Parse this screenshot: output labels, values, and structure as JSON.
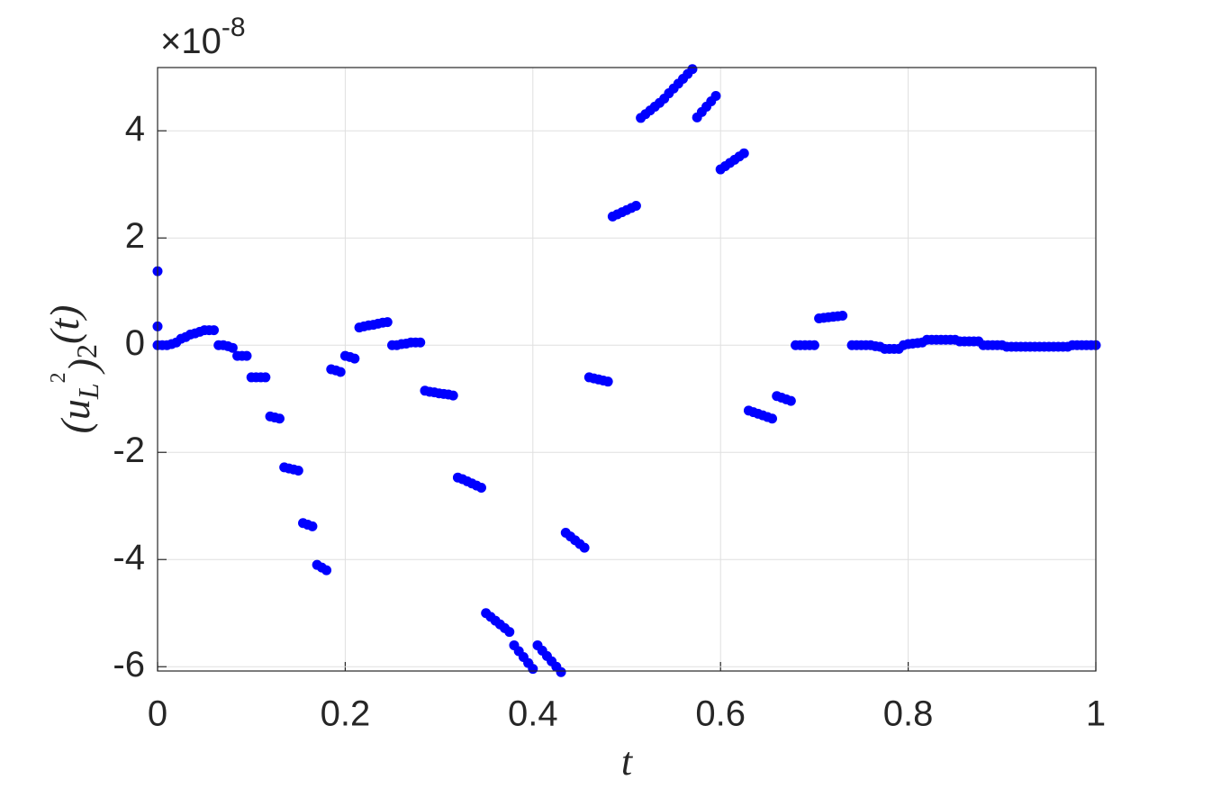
{
  "chart_data": {
    "type": "scatter",
    "xlabel": "t",
    "ylabel_parts": [
      "(u",
      "L",
      "2",
      ")",
      "2",
      "(t)"
    ],
    "y_multiplier": {
      "base": "×10",
      "exponent": "-8"
    },
    "color": "#0000ff",
    "grid": true,
    "xlim": [
      0,
      1
    ],
    "xticks": [
      0,
      0.2,
      0.4,
      0.6,
      0.8,
      1
    ],
    "ylim": [
      -6.08,
      5.18
    ],
    "yticks": [
      -6,
      -4,
      -2,
      0,
      2,
      4
    ],
    "x": [
      0,
      0,
      0,
      0.005,
      0.01,
      0.015,
      0.02,
      0.025,
      0.03,
      0.035,
      0.04,
      0.045,
      0.05,
      0.055,
      0.06,
      0.065,
      0.07,
      0.075,
      0.08,
      0.085,
      0.09,
      0.095,
      0.1,
      0.105,
      0.11,
      0.115,
      0.12,
      0.125,
      0.13,
      0.135,
      0.14,
      0.145,
      0.15,
      0.155,
      0.16,
      0.165,
      0.17,
      0.175,
      0.18,
      0.185,
      0.19,
      0.195,
      0.2,
      0.205,
      0.21,
      0.215,
      0.22,
      0.225,
      0.23,
      0.235,
      0.24,
      0.245,
      0.25,
      0.255,
      0.26,
      0.265,
      0.27,
      0.275,
      0.28,
      0.285,
      0.29,
      0.295,
      0.3,
      0.305,
      0.31,
      0.315,
      0.32,
      0.325,
      0.33,
      0.335,
      0.34,
      0.345,
      0.35,
      0.355,
      0.36,
      0.365,
      0.37,
      0.375,
      0.38,
      0.385,
      0.39,
      0.395,
      0.4,
      0.405,
      0.41,
      0.415,
      0.42,
      0.425,
      0.43,
      0.435,
      0.44,
      0.445,
      0.45,
      0.455,
      0.46,
      0.465,
      0.47,
      0.475,
      0.48,
      0.485,
      0.49,
      0.495,
      0.5,
      0.505,
      0.51,
      0.515,
      0.52,
      0.525,
      0.53,
      0.535,
      0.54,
      0.545,
      0.55,
      0.555,
      0.56,
      0.565,
      0.57,
      0.575,
      0.58,
      0.585,
      0.59,
      0.595,
      0.6,
      0.605,
      0.61,
      0.615,
      0.62,
      0.625,
      0.63,
      0.635,
      0.64,
      0.645,
      0.65,
      0.655,
      0.66,
      0.665,
      0.67,
      0.675,
      0.68,
      0.685,
      0.69,
      0.695,
      0.7,
      0.705,
      0.71,
      0.715,
      0.72,
      0.725,
      0.73,
      0.74,
      0.745,
      0.75,
      0.755,
      0.76,
      0.765,
      0.77,
      0.775,
      0.78,
      0.785,
      0.79,
      0.795,
      0.8,
      0.805,
      0.81,
      0.815,
      0.82,
      0.825,
      0.83,
      0.835,
      0.84,
      0.845,
      0.85,
      0.855,
      0.86,
      0.865,
      0.87,
      0.875,
      0.88,
      0.885,
      0.89,
      0.895,
      0.9,
      0.905,
      0.91,
      0.915,
      0.92,
      0.925,
      0.93,
      0.935,
      0.94,
      0.945,
      0.95,
      0.955,
      0.96,
      0.965,
      0.97,
      0.975,
      0.98,
      0.985,
      0.99,
      0.995,
      1
    ],
    "values": [
      1.38,
      0.35,
      0,
      0,
      0,
      0.02,
      0.05,
      0.12,
      0.15,
      0.2,
      0.22,
      0.25,
      0.28,
      0.28,
      0.28,
      0,
      0,
      -0.02,
      -0.05,
      -0.2,
      -0.2,
      -0.2,
      -0.6,
      -0.6,
      -0.6,
      -0.6,
      -1.33,
      -1.35,
      -1.37,
      -2.28,
      -2.3,
      -2.32,
      -2.34,
      -3.32,
      -3.35,
      -3.38,
      -4.1,
      -4.15,
      -4.2,
      -0.45,
      -0.47,
      -0.5,
      -0.2,
      -0.22,
      -0.25,
      0.33,
      0.35,
      0.37,
      0.38,
      0.4,
      0.42,
      0.43,
      0,
      0,
      0.02,
      0.03,
      0.05,
      0.05,
      0.05,
      -0.85,
      -0.87,
      -0.88,
      -0.9,
      -0.91,
      -0.92,
      -0.94,
      -2.47,
      -2.5,
      -2.54,
      -2.58,
      -2.62,
      -2.66,
      -5.0,
      -5.07,
      -5.14,
      -5.21,
      -5.28,
      -5.35,
      -5.6,
      -5.71,
      -5.82,
      -5.93,
      -6.04,
      -5.6,
      -5.7,
      -5.8,
      -5.9,
      -6.0,
      -6.1,
      -3.5,
      -3.57,
      -3.64,
      -3.71,
      -3.78,
      -0.6,
      -0.62,
      -0.64,
      -0.66,
      -0.68,
      2.4,
      2.44,
      2.48,
      2.52,
      2.56,
      2.6,
      4.24,
      4.31,
      4.38,
      4.45,
      4.52,
      4.6,
      4.7,
      4.79,
      4.88,
      4.97,
      5.06,
      5.15,
      4.25,
      4.35,
      4.45,
      4.55,
      4.65,
      3.28,
      3.34,
      3.4,
      3.46,
      3.52,
      3.58,
      -1.22,
      -1.25,
      -1.28,
      -1.31,
      -1.34,
      -1.37,
      -0.95,
      -0.98,
      -1.01,
      -1.04,
      0,
      0,
      0,
      0,
      0,
      0.5,
      0.51,
      0.52,
      0.53,
      0.54,
      0.55,
      0,
      0,
      0,
      0,
      0,
      -0.02,
      -0.03,
      -0.07,
      -0.07,
      -0.07,
      -0.07,
      0,
      0.02,
      0.03,
      0.04,
      0.05,
      0.1,
      0.1,
      0.1,
      0.1,
      0.1,
      0.1,
      0.1,
      0.07,
      0.07,
      0.07,
      0.07,
      0.07,
      0,
      0,
      0,
      0,
      0,
      -0.03,
      -0.03,
      -0.03,
      -0.03,
      -0.03,
      -0.03,
      -0.03,
      -0.03,
      -0.03,
      -0.03,
      -0.03,
      -0.03,
      -0.03,
      -0.03,
      0,
      0,
      0,
      0,
      0,
      0
    ]
  }
}
